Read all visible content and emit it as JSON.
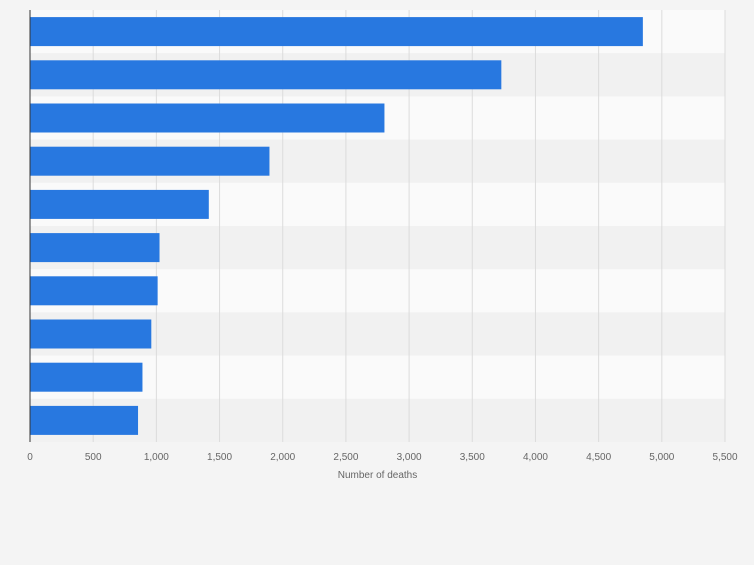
{
  "chart_data": {
    "type": "bar",
    "orientation": "horizontal",
    "title": "",
    "categories": [
      "",
      "",
      "",
      "",
      "",
      "",
      "",
      "",
      "",
      ""
    ],
    "values": [
      4850,
      3730,
      2805,
      1895,
      1415,
      1025,
      1010,
      960,
      890,
      855
    ],
    "xlabel": "Number of deaths",
    "ylabel": "",
    "xlim": [
      0,
      5500
    ],
    "xticks": [
      0,
      500,
      1000,
      1500,
      2000,
      2500,
      3000,
      3500,
      4000,
      4500,
      5000,
      5500
    ],
    "xtick_labels": [
      "0",
      "500",
      "1,000",
      "1,500",
      "2,000",
      "2,500",
      "3,000",
      "3,500",
      "4,000",
      "4,500",
      "5,000",
      "5,500"
    ],
    "grid": true,
    "legend": "none",
    "colors": {
      "bar": "#2878e0",
      "band_light": "#fafafa",
      "band_dark": "#f1f1f1",
      "grid": "#dcdcdc",
      "axis": "#333333",
      "tick_text": "#666666"
    }
  }
}
